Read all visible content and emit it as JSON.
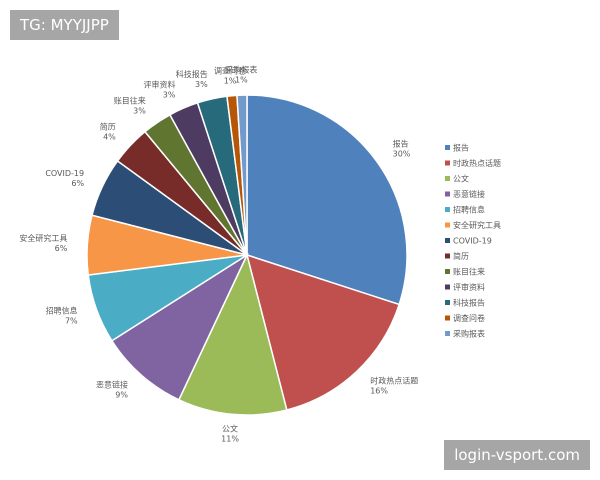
{
  "chart_data": {
    "type": "pie",
    "categories": [
      "报告",
      "时政热点话题",
      "公文",
      "恶意链接",
      "招聘信息",
      "安全研究工具",
      "COVID-19",
      "简历",
      "账目往来",
      "评审资料",
      "科技报告",
      "调查问卷",
      "采购报表"
    ],
    "values": [
      30,
      16,
      11,
      9,
      7,
      6,
      6,
      4,
      3,
      3,
      3,
      1,
      1
    ],
    "value_labels": [
      "30%",
      "16%",
      "11%",
      "9%",
      "7%",
      "6%",
      "6%",
      "4%",
      "3%",
      "3%",
      "3%",
      "1%",
      "1%"
    ],
    "colors": [
      "#4f81bd",
      "#c0504d",
      "#9bbb59",
      "#8064a2",
      "#4bacc6",
      "#f79646",
      "#2c4d75",
      "#772c2a",
      "#5f7530",
      "#4d3b62",
      "#276a7c",
      "#b65708",
      "#729aca"
    ],
    "legend": "right"
  },
  "watermarks": [
    "TG: MYYJJPP",
    "login-vsport.com"
  ]
}
